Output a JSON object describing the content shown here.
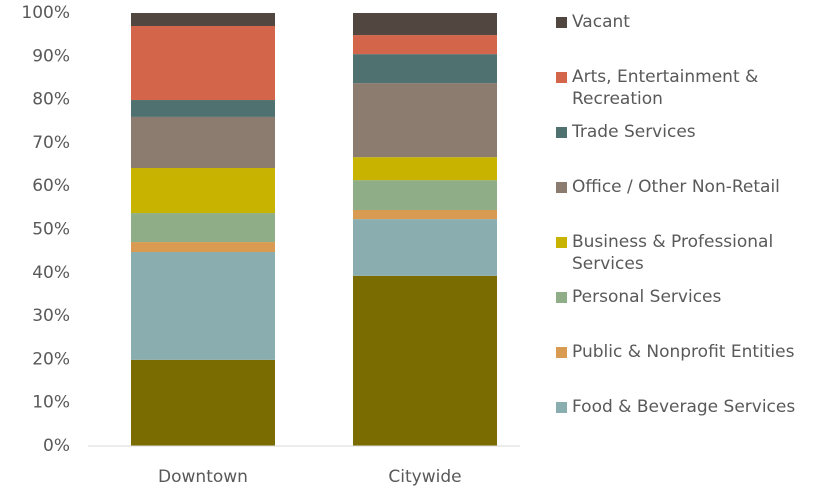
{
  "chart_data": {
    "type": "stacked_bar",
    "categories": [
      "Downtown",
      "Citywide"
    ],
    "series": [
      {
        "color": "#7a6c00",
        "values": [
          19.9,
          39.3
        ]
      },
      {
        "name": "Food & Beverage Services",
        "color": "#8aadb0",
        "values": [
          24.9,
          13.1
        ]
      },
      {
        "name": "Public & Nonprofit Entities",
        "color": "#d99a52",
        "values": [
          2.3,
          2.1
        ]
      },
      {
        "name": "Personal Services",
        "color": "#8fae88",
        "values": [
          6.7,
          6.9
        ]
      },
      {
        "name": "Business & Professional Services",
        "color": "#c8b400",
        "values": [
          10.4,
          5.3
        ]
      },
      {
        "name": "Office / Other Non-Retail",
        "color": "#8c7b6f",
        "values": [
          11.8,
          17.1
        ]
      },
      {
        "name": "Trade Services",
        "color": "#4f7170",
        "values": [
          3.9,
          6.7
        ]
      },
      {
        "name": "Arts, Entertainment & Recreation",
        "color": "#d3664a",
        "values": [
          17.1,
          4.4
        ]
      },
      {
        "name": "Vacant",
        "color": "#524640",
        "values": [
          3.0,
          5.1
        ]
      }
    ],
    "ylim": [
      0,
      100
    ],
    "yticks": [
      {
        "value": 0,
        "label": "0%"
      },
      {
        "value": 10,
        "label": "10%"
      },
      {
        "value": 20,
        "label": "20%"
      },
      {
        "value": 30,
        "label": "30%"
      },
      {
        "value": 40,
        "label": "40%"
      },
      {
        "value": 50,
        "label": "50%"
      },
      {
        "value": 60,
        "label": "60%"
      },
      {
        "value": 70,
        "label": "70%"
      },
      {
        "value": 80,
        "label": "80%"
      },
      {
        "value": 90,
        "label": "90%"
      },
      {
        "value": 100,
        "label": "100%"
      }
    ],
    "legend": "right"
  }
}
